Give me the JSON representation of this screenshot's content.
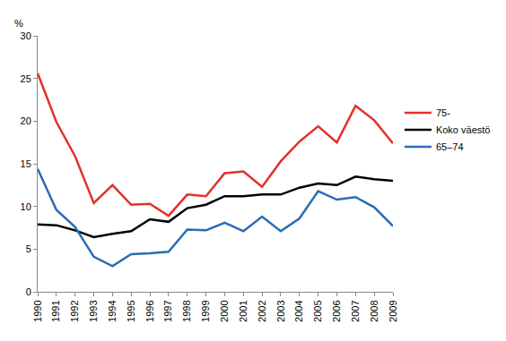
{
  "chart_data": {
    "type": "line",
    "y_label": "%",
    "categories": [
      "1990",
      "1991",
      "1992",
      "1993",
      "1994",
      "1995",
      "1996",
      "1997",
      "1998",
      "1999",
      "2000",
      "2001",
      "2002",
      "2003",
      "2004",
      "2005",
      "2006",
      "2007",
      "2008",
      "2009"
    ],
    "series": [
      {
        "name": "75-",
        "color": "#e2302d",
        "values": [
          25.6,
          19.9,
          15.9,
          10.4,
          12.5,
          10.2,
          10.3,
          8.9,
          11.4,
          11.2,
          13.9,
          14.1,
          12.3,
          15.3,
          17.6,
          19.4,
          17.5,
          21.8,
          20.1,
          17.4
        ]
      },
      {
        "name": "Koko väestö",
        "color": "#000000",
        "values": [
          7.9,
          7.8,
          7.2,
          6.4,
          6.8,
          7.1,
          8.5,
          8.2,
          9.8,
          10.2,
          11.2,
          11.2,
          11.4,
          11.4,
          12.2,
          12.7,
          12.5,
          13.5,
          13.2,
          13.0
        ]
      },
      {
        "name": "65–74",
        "color": "#2a6cb5",
        "values": [
          14.4,
          9.6,
          7.6,
          4.1,
          3.0,
          4.4,
          4.5,
          4.7,
          7.3,
          7.2,
          8.1,
          7.1,
          8.8,
          7.1,
          8.6,
          11.8,
          10.8,
          11.1,
          9.9,
          7.7
        ]
      }
    ],
    "ylim": [
      0,
      30
    ],
    "yticks": [
      0,
      5,
      10,
      15,
      20,
      25,
      30
    ],
    "grid": false,
    "legend": "right"
  }
}
